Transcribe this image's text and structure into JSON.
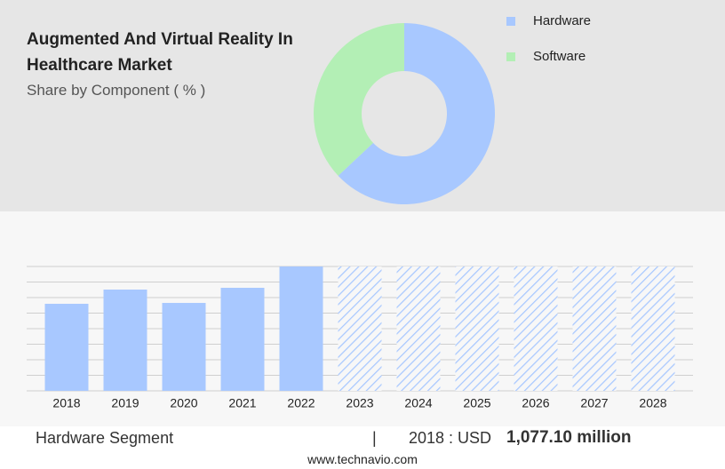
{
  "chart_data": [
    {
      "type": "donut",
      "title": "Augmented And Virtual Reality In Healthcare Market",
      "subtitle": "Share by Component ( % )",
      "series": [
        {
          "name": "Hardware",
          "color": "#a8c8ff",
          "values": [
            63
          ]
        },
        {
          "name": "Software",
          "color": "#b3efb5",
          "values": [
            37
          ]
        }
      ]
    },
    {
      "type": "bar",
      "categories": [
        "2018",
        "2019",
        "2020",
        "2021",
        "2022",
        "2023",
        "2024",
        "2025",
        "2026",
        "2027",
        "2028"
      ],
      "values": [
        1077.1,
        1253,
        1088,
        1275,
        1539,
        null,
        null,
        null,
        null,
        null,
        null
      ],
      "color": "#a8c8ff",
      "ylim": [
        0,
        1539
      ]
    }
  ],
  "footer": {
    "segment": "Hardware Segment",
    "year_label": "2018 : USD",
    "value": "1,077.10 million",
    "site": "www.technavio.com"
  }
}
